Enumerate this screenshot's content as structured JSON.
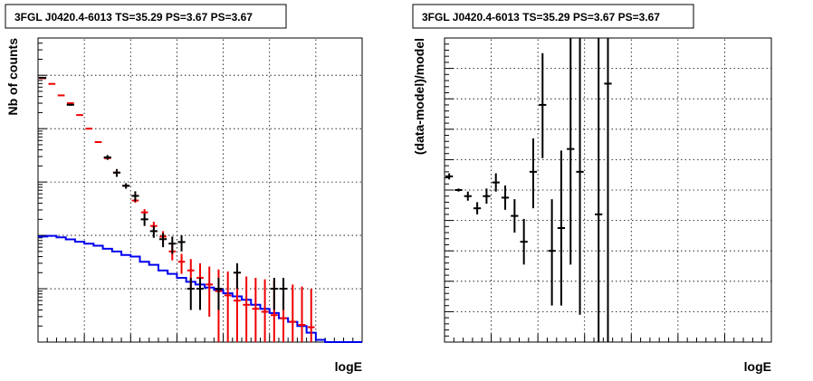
{
  "chart_data": [
    {
      "type": "scatter",
      "title": "3FGL J0420.4-6013 TS=35.29 PS=3.67 PS=3.67",
      "xlabel": "logE",
      "ylabel": "Nb of counts",
      "xlim": [
        2,
        5.5
      ],
      "ylim": [
        0.1,
        50000
      ],
      "yscale": "log",
      "grid": true,
      "x_ticks": [
        "2",
        "2.5",
        "3",
        "3.5",
        "4",
        "4.5",
        "5",
        "5.5"
      ],
      "y_ticks": [
        "10⁻¹",
        "1",
        "10",
        "10²",
        "10³",
        "10⁴"
      ],
      "colors": {
        "data": "#000000",
        "model": "#ee0000",
        "background": "#0000ee"
      },
      "series": [
        {
          "role": "data",
          "x": [
            2.05,
            2.35,
            2.75,
            2.85,
            2.95,
            3.05,
            3.15,
            3.25,
            3.35,
            3.45,
            3.55,
            3.65,
            3.75,
            3.95,
            4.15,
            4.55,
            4.65
          ],
          "y": [
            9000,
            2800,
            290,
            150,
            85,
            55,
            20,
            12,
            8.5,
            7,
            7.5,
            1.0,
            1.0,
            1.0,
            2.0,
            1.0,
            1.0
          ],
          "y_low": [
            8700,
            2700,
            260,
            125,
            75,
            43,
            15,
            9,
            6,
            4.5,
            5,
            0.4,
            0.4,
            0.4,
            1.0,
            0.4,
            0.4
          ],
          "y_high": [
            9300,
            2900,
            320,
            175,
            95,
            67,
            26,
            15,
            11,
            9.5,
            10,
            1.6,
            1.6,
            1.6,
            3.0,
            1.6,
            1.6
          ]
        },
        {
          "role": "model",
          "x": [
            2.05,
            2.15,
            2.25,
            2.35,
            2.45,
            2.55,
            2.65,
            2.75,
            2.85,
            2.95,
            3.05,
            3.15,
            3.25,
            3.35,
            3.45,
            3.55,
            3.65,
            3.75,
            3.85,
            3.95,
            4.05,
            4.15,
            4.25,
            4.35,
            4.45,
            4.55,
            4.65,
            4.75,
            4.85,
            4.95
          ],
          "y": [
            8800,
            6900,
            4200,
            3000,
            1800,
            1000,
            560,
            280,
            150,
            85,
            45,
            27,
            15,
            9.5,
            5,
            3.2,
            2.2,
            1.6,
            1.2,
            0.9,
            0.75,
            0.6,
            0.5,
            0.42,
            0.37,
            0.32,
            0.28,
            0.24,
            0.21,
            0.19
          ],
          "y_low": [
            8800,
            6900,
            4200,
            3000,
            1800,
            1000,
            560,
            280,
            150,
            85,
            41,
            23,
            12,
            7,
            3.4,
            1.9,
            1.0,
            0.6,
            0.3,
            0.1,
            0.1,
            0.1,
            0.1,
            0.1,
            0.1,
            0.1,
            0.1,
            0.1,
            0.1,
            0.1
          ],
          "y_high": [
            8800,
            6900,
            4200,
            3000,
            1800,
            1000,
            560,
            280,
            150,
            85,
            49,
            31,
            18,
            12,
            6.6,
            4.5,
            3.6,
            3.0,
            2.6,
            2.3,
            2.1,
            1.9,
            1.7,
            1.6,
            1.5,
            1.4,
            1.3,
            1.2,
            1.1,
            1.0
          ]
        },
        {
          "role": "background",
          "step_x": [
            2.0,
            2.1,
            2.2,
            2.3,
            2.4,
            2.5,
            2.6,
            2.7,
            2.8,
            2.9,
            3.0,
            3.1,
            3.2,
            3.3,
            3.4,
            3.5,
            3.6,
            3.7,
            3.8,
            3.9,
            4.0,
            4.1,
            4.2,
            4.3,
            4.4,
            4.5,
            4.6,
            4.7,
            4.8,
            4.9,
            5.0,
            5.1,
            5.2,
            5.3,
            5.4,
            5.5
          ],
          "y": [
            9.5,
            9.8,
            9.2,
            8.4,
            7.6,
            7.0,
            6.4,
            5.6,
            5.0,
            4.3,
            4.0,
            3.2,
            2.8,
            2.2,
            1.9,
            1.6,
            1.35,
            1.2,
            1.05,
            0.95,
            0.82,
            0.72,
            0.62,
            0.5,
            0.42,
            0.35,
            0.28,
            0.24,
            0.2,
            0.15,
            0.11,
            0.1,
            0.1,
            0.1,
            0.1
          ]
        }
      ]
    },
    {
      "type": "scatter",
      "title": "3FGL J0420.4-6013 TS=35.29 PS=3.67 PS=3.67",
      "xlabel": "logE",
      "ylabel": "(data-model)/model",
      "xlim": [
        2,
        5.5
      ],
      "ylim": [
        -0.5,
        0.5
      ],
      "grid": true,
      "x_ticks": [
        "2",
        "2.5",
        "3",
        "3.5",
        "4",
        "4.5",
        "5",
        "5.5"
      ],
      "y_ticks": [
        "−0.5",
        "−0.4",
        "−0.3",
        "−0.2",
        "−0.1",
        "0",
        "0.1",
        "0.2",
        "0.3",
        "0.4",
        "0.5"
      ],
      "series": [
        {
          "role": "residual",
          "x": [
            2.05,
            2.15,
            2.25,
            2.35,
            2.45,
            2.55,
            2.65,
            2.75,
            2.85,
            2.95,
            3.05,
            3.15,
            3.25,
            3.35,
            3.45,
            3.65,
            3.75
          ],
          "y": [
            0.045,
            0.0,
            -0.02,
            -0.06,
            -0.02,
            0.025,
            -0.025,
            -0.085,
            -0.17,
            0.06,
            0.28,
            -0.2,
            -0.125,
            0.135,
            0.06,
            -0.08,
            0.35
          ],
          "y_low": [
            0.035,
            -0.005,
            -0.035,
            -0.08,
            -0.045,
            -0.005,
            -0.065,
            -0.14,
            -0.245,
            -0.06,
            0.105,
            -0.38,
            -0.38,
            -0.245,
            -0.41,
            -0.5,
            -0.5
          ],
          "y_high": [
            0.055,
            0.005,
            -0.005,
            -0.04,
            0.005,
            0.055,
            0.015,
            -0.03,
            -0.095,
            0.17,
            0.45,
            -0.03,
            0.13,
            0.5,
            0.5,
            0.5,
            0.5
          ]
        }
      ]
    }
  ]
}
